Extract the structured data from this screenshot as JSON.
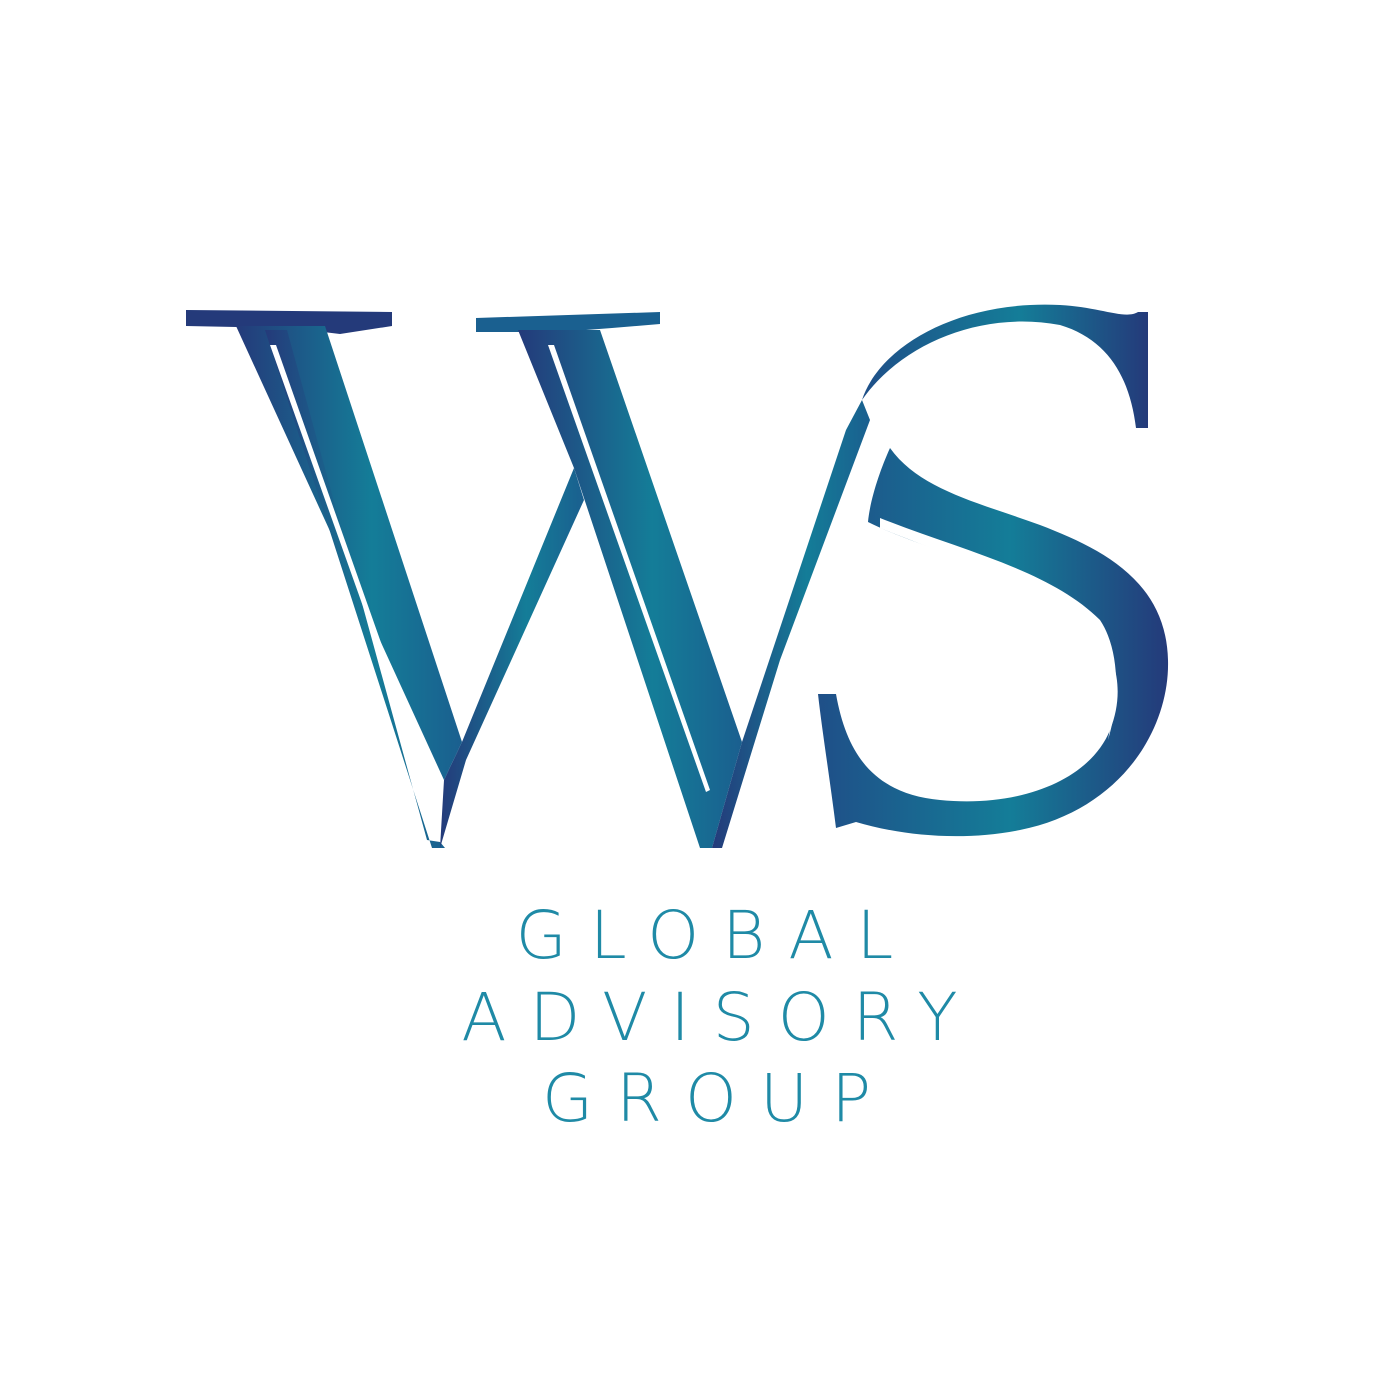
{
  "logo": {
    "monogram": "WS",
    "lines": [
      "GLOBAL",
      "ADVISORY",
      "GROUP"
    ]
  },
  "colors": {
    "background": "#ffffff",
    "gradient_dark": "#243a7a",
    "gradient_light": "#147d98",
    "text": "#1f8aa6"
  }
}
